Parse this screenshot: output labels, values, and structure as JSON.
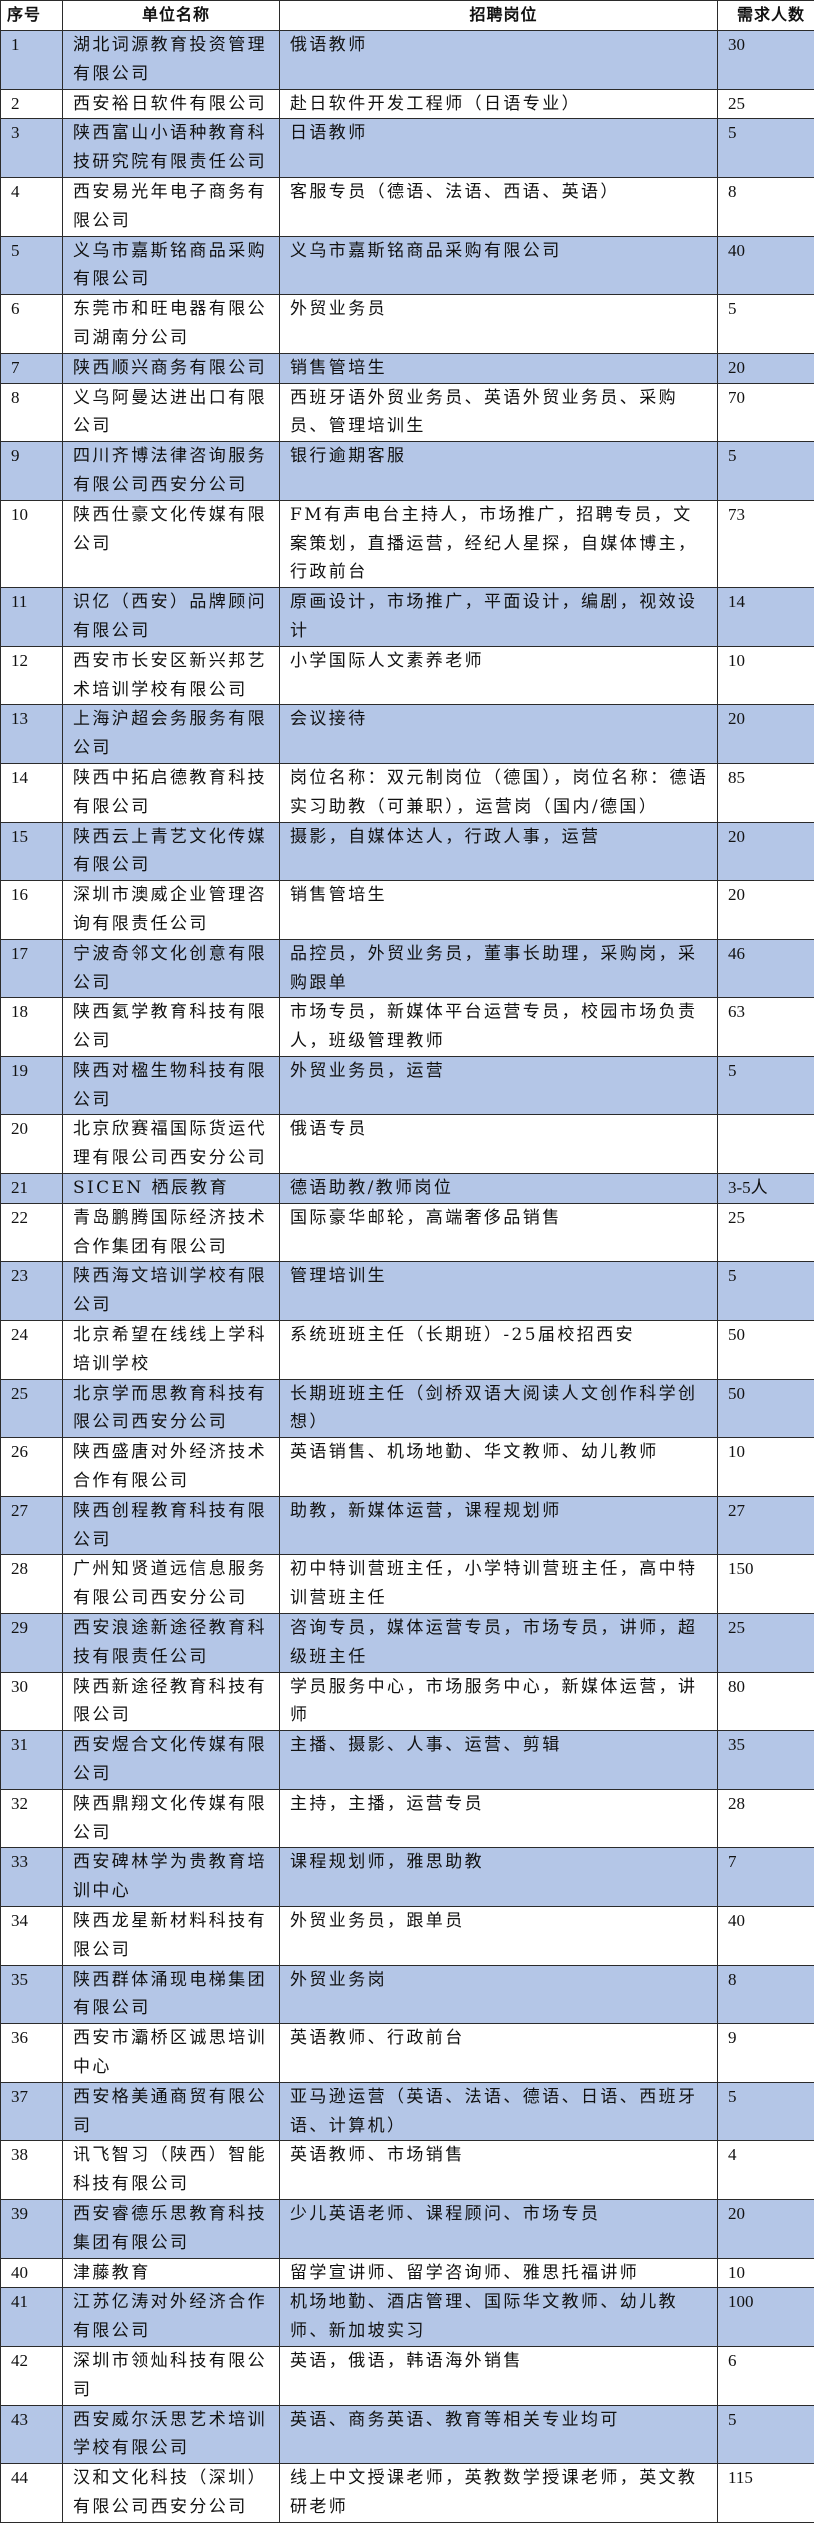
{
  "headers": [
    "序号",
    "单位名称",
    "招聘岗位",
    "需求人数"
  ],
  "colors": {
    "shade": "#b4c6e7",
    "border": "#2b2b2b"
  },
  "rows": [
    [
      "1",
      "湖北词源教育投资管理有限公司",
      "俄语教师",
      "30"
    ],
    [
      "2",
      "西安裕日软件有限公司",
      "赴日软件开发工程师（日语专业）",
      "25"
    ],
    [
      "3",
      "陕西富山小语种教育科技研究院有限责任公司",
      "日语教师",
      "5"
    ],
    [
      "4",
      "西安易光年电子商务有限公司",
      "客服专员（德语、法语、西语、英语）",
      "8"
    ],
    [
      "5",
      "义乌市嘉斯铭商品采购有限公司",
      "义乌市嘉斯铭商品采购有限公司",
      "40"
    ],
    [
      "6",
      "东莞市和旺电器有限公司湖南分公司",
      "外贸业务员",
      "5"
    ],
    [
      "7",
      "陕西顺兴商务有限公司",
      "销售管培生",
      "20"
    ],
    [
      "8",
      "义乌阿曼达进出口有限公司",
      "西班牙语外贸业务员、英语外贸业务员、采购员、管理培训生",
      "70"
    ],
    [
      "9",
      "四川齐博法律咨询服务有限公司西安分公司",
      "银行逾期客服",
      "5"
    ],
    [
      "10",
      "陕西仕豪文化传媒有限公司",
      "FM有声电台主持人，市场推广，招聘专员，文案策划，直播运营，经纪人星探，自媒体博主，行政前台",
      "73"
    ],
    [
      "11",
      "识亿（西安）品牌顾问有限公司",
      "原画设计，市场推广，平面设计，编剧，视效设计",
      "14"
    ],
    [
      "12",
      "西安市长安区新兴邦艺术培训学校有限公司",
      "小学国际人文素养老师",
      "10"
    ],
    [
      "13",
      "上海沪超会务服务有限公司",
      "会议接待",
      "20"
    ],
    [
      "14",
      "陕西中拓启德教育科技有限公司",
      "岗位名称：双元制岗位（德国），岗位名称：德语实习助教（可兼职），运营岗（国内/德国）",
      "85"
    ],
    [
      "15",
      "陕西云上青艺文化传媒有限公司",
      "摄影，自媒体达人，行政人事，运营",
      "20"
    ],
    [
      "16",
      "深圳市澳威企业管理咨询有限责任公司",
      "销售管培生",
      "20"
    ],
    [
      "17",
      "宁波奇邻文化创意有限公司",
      "品控员，外贸业务员，董事长助理，采购岗，采购跟单",
      "46"
    ],
    [
      "18",
      "陕西氦学教育科技有限公司",
      "市场专员，新媒体平台运营专员，校园市场负责人，班级管理教师",
      "63"
    ],
    [
      "19",
      "陕西对楹生物科技有限公司",
      "外贸业务员，运营",
      "5"
    ],
    [
      "20",
      "北京欣赛福国际货运代理有限公司西安分公司",
      "俄语专员",
      ""
    ],
    [
      "21",
      "SICEN 栖辰教育",
      "德语助教/教师岗位",
      "3-5人"
    ],
    [
      "22",
      "青岛鹏腾国际经济技术合作集团有限公司",
      "国际豪华邮轮，高端奢侈品销售",
      "25"
    ],
    [
      "23",
      "陕西海文培训学校有限公司",
      "管理培训生",
      "5"
    ],
    [
      "24",
      "北京希望在线线上学科培训学校",
      "系统班班主任（长期班）-25届校招西安",
      "50"
    ],
    [
      "25",
      "北京学而思教育科技有限公司西安分公司",
      "长期班班主任（剑桥双语大阅读人文创作科学创想）",
      "50"
    ],
    [
      "26",
      "陕西盛唐对外经济技术合作有限公司",
      "英语销售、机场地勤、华文教师、幼儿教师",
      "10"
    ],
    [
      "27",
      "陕西创程教育科技有限公司",
      "助教，新媒体运营，课程规划师",
      "27"
    ],
    [
      "28",
      "广州知贤道远信息服务有限公司西安分公司",
      "初中特训营班主任，小学特训营班主任，高中特训营班主任",
      "150"
    ],
    [
      "29",
      "西安浪途新途径教育科技有限责任公司",
      "咨询专员，媒体运营专员，市场专员，讲师，超级班主任",
      "25"
    ],
    [
      "30",
      "陕西新途径教育科技有限公司",
      "学员服务中心，市场服务中心，新媒体运营，讲师",
      "80"
    ],
    [
      "31",
      "西安煜合文化传媒有限公司",
      "主播、摄影、人事、运营、剪辑",
      "35"
    ],
    [
      "32",
      "陕西鼎翔文化传媒有限公司",
      "主持，主播，运营专员",
      "28"
    ],
    [
      "33",
      "西安碑林学为贵教育培训中心",
      "课程规划师，雅思助教",
      "7"
    ],
    [
      "34",
      "陕西龙星新材料科技有限公司",
      "外贸业务员，跟单员",
      "40"
    ],
    [
      "35",
      "陕西群体涌现电梯集团有限公司",
      "外贸业务岗",
      "8"
    ],
    [
      "36",
      "西安市灞桥区诚思培训中心",
      "英语教师、行政前台",
      "9"
    ],
    [
      "37",
      "西安格美通商贸有限公司",
      "亚马逊运营（英语、法语、德语、日语、西班牙语、计算机）",
      "5"
    ],
    [
      "38",
      "讯飞智习（陕西）智能科技有限公司",
      "英语教师、市场销售",
      "4"
    ],
    [
      "39",
      "西安睿德乐思教育科技集团有限公司",
      "少儿英语老师、课程顾问、市场专员",
      "20"
    ],
    [
      "40",
      "津藤教育",
      "留学宣讲师、留学咨询师、雅思托福讲师",
      "10"
    ],
    [
      "41",
      "江苏亿涛对外经济合作有限公司",
      "机场地勤、酒店管理、国际华文教师、幼儿教师、新加坡实习",
      "100"
    ],
    [
      "42",
      "深圳市领灿科技有限公司",
      "英语，俄语，韩语海外销售",
      "6"
    ],
    [
      "43",
      "西安威尔沃思艺术培训学校有限公司",
      "英语、商务英语、教育等相关专业均可",
      "5"
    ],
    [
      "44",
      "汉和文化科技（深圳）有限公司西安分公司",
      "线上中文授课老师，英教数学授课老师，英文教研老师",
      "115"
    ]
  ]
}
